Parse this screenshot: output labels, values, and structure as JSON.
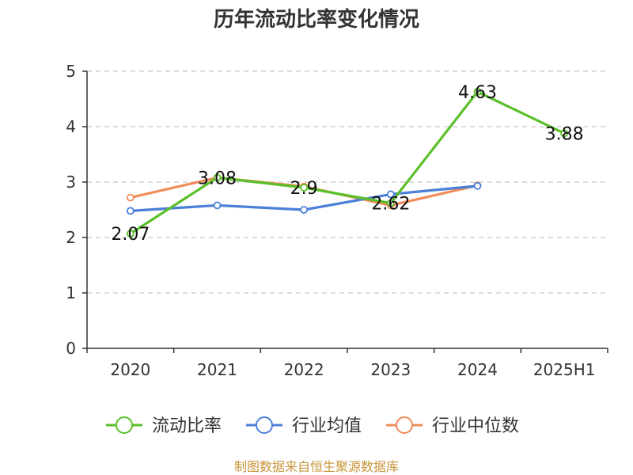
{
  "chart_data": {
    "type": "line",
    "title": "历年流动比率变化情况",
    "categories": [
      "2020",
      "2021",
      "2022",
      "2023",
      "2024",
      "2025H1"
    ],
    "ylim": [
      0,
      5
    ],
    "yticks": [
      0,
      1,
      2,
      3,
      4,
      5
    ],
    "grid": true,
    "legend_position": "bottom",
    "series": [
      {
        "name": "流动比率",
        "color": "#5ac02a",
        "show_labels": true,
        "values": [
          2.07,
          3.08,
          2.9,
          2.62,
          4.63,
          3.88
        ]
      },
      {
        "name": "行业均值",
        "color": "#4c7fd8",
        "show_labels": false,
        "values": [
          2.48,
          2.58,
          2.5,
          2.78,
          2.93,
          null
        ]
      },
      {
        "name": "行业中位数",
        "color": "#f08c5a",
        "show_labels": false,
        "values": [
          2.72,
          3.08,
          2.92,
          2.58,
          2.94,
          null
        ]
      }
    ],
    "data_labels": [
      "2.07",
      "3.08",
      "2.9",
      "2.62",
      "4.63",
      "3.88"
    ],
    "source": "制图数据来自恒生聚源数据库"
  }
}
